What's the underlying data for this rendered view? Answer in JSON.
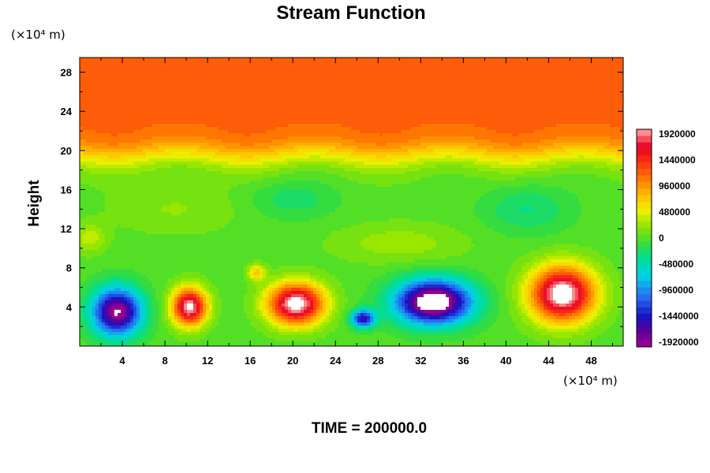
{
  "chart_data": {
    "type": "heatmap",
    "title": "Stream Function",
    "ylabel": "Height",
    "x_unit_label": "(×10⁴ m)",
    "y_unit_label": "(×10⁴ m)",
    "bottom_label": "TIME = 200000.0",
    "xlim": [
      0,
      51
    ],
    "ylim": [
      0,
      29.5
    ],
    "x_ticks": [
      4,
      8,
      12,
      16,
      20,
      24,
      28,
      32,
      36,
      40,
      44,
      48
    ],
    "y_ticks": [
      4,
      8,
      12,
      16,
      20,
      24,
      28
    ],
    "colorbar": {
      "min": -1920000,
      "max": 1920000,
      "levels": 33,
      "tick_labels": [
        "1920000",
        "1440000",
        "960000",
        "480000",
        "0",
        "-480000",
        "-960000",
        "-1440000",
        "-1920000"
      ]
    },
    "field": {
      "background_value": 0,
      "upper_band": {
        "value": 1150000,
        "boundary_height": 19.5
      },
      "features": [
        {
          "x": 3.5,
          "y": 3.5,
          "value": -1950000,
          "sx": 2.3,
          "sy": 2.4
        },
        {
          "x": 10.3,
          "y": 4.0,
          "value": 2000000,
          "sx": 1.6,
          "sy": 1.9
        },
        {
          "x": 16.6,
          "y": 7.5,
          "value": 700000,
          "sx": 0.8,
          "sy": 0.8
        },
        {
          "x": 20.3,
          "y": 4.3,
          "value": 2100000,
          "sx": 2.6,
          "sy": 2.1
        },
        {
          "x": 26.6,
          "y": 2.8,
          "value": -1500000,
          "sx": 1.1,
          "sy": 0.9
        },
        {
          "x": 33.2,
          "y": 4.5,
          "value": -2300000,
          "sx": 3.5,
          "sy": 2.2
        },
        {
          "x": 45.3,
          "y": 5.3,
          "value": 2150000,
          "sx": 3.0,
          "sy": 2.8
        },
        {
          "x": 9.0,
          "y": 14.0,
          "value": 180000,
          "sx": 6.0,
          "sy": 2.5
        },
        {
          "x": 20.0,
          "y": 15.0,
          "value": -250000,
          "sx": 4.0,
          "sy": 2.0
        },
        {
          "x": 42.0,
          "y": 14.0,
          "value": -300000,
          "sx": 4.0,
          "sy": 2.5
        },
        {
          "x": 30.0,
          "y": 10.5,
          "value": 250000,
          "sx": 6.0,
          "sy": 2.0
        },
        {
          "x": 1.0,
          "y": 11.0,
          "value": 350000,
          "sx": 1.5,
          "sy": 1.5
        }
      ]
    },
    "grid": false
  }
}
